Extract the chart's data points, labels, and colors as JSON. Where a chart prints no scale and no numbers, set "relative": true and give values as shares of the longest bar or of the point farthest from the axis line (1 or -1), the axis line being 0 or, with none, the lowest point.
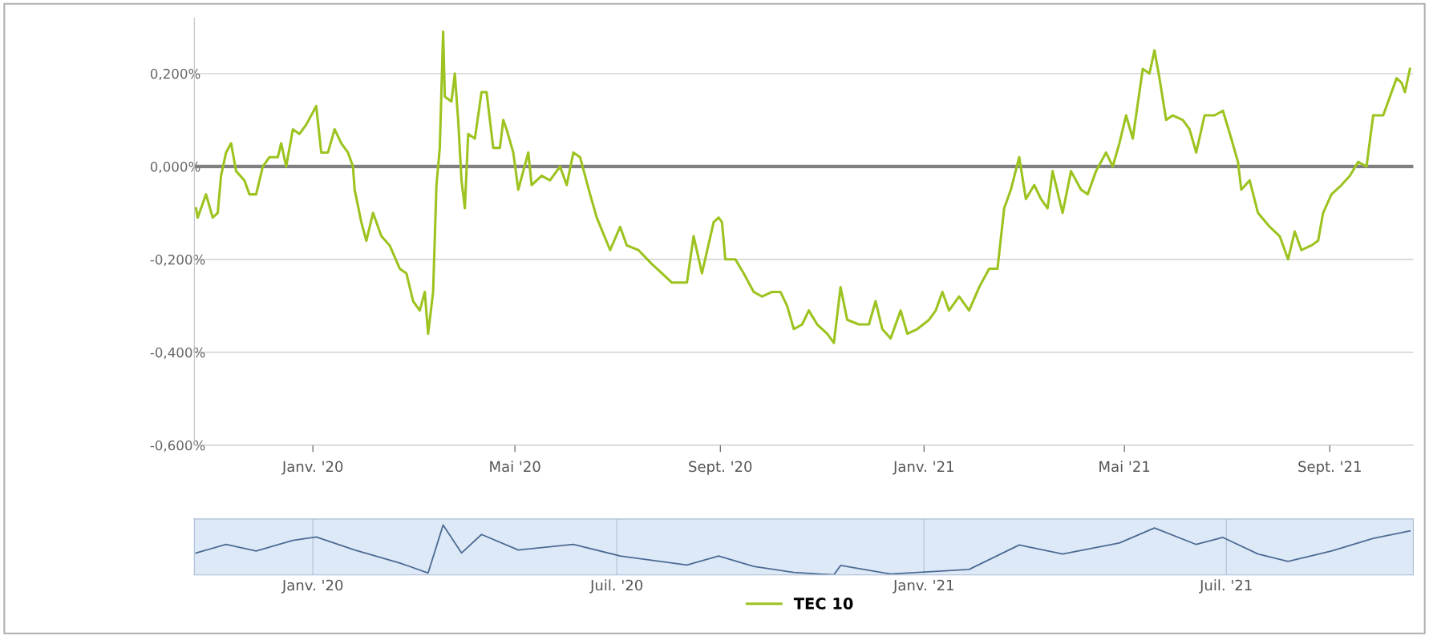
{
  "chart_data": [
    {
      "type": "line",
      "x": [
        "2019-10-23",
        "2019-10-24",
        "2019-10-29",
        "2019-11-02",
        "2019-11-05",
        "2019-11-07",
        "2019-11-10",
        "2019-11-13",
        "2019-11-16",
        "2019-11-21",
        "2019-11-24",
        "2019-11-28",
        "2019-12-02",
        "2019-12-06",
        "2019-12-11",
        "2019-12-13",
        "2019-12-16",
        "2019-12-20",
        "2019-12-24",
        "2019-12-28",
        "2020-01-03",
        "2020-01-06",
        "2020-01-10",
        "2020-01-14",
        "2020-01-18",
        "2020-01-22",
        "2020-01-25",
        "2020-01-26",
        "2020-01-30",
        "2020-02-02",
        "2020-02-06",
        "2020-02-11",
        "2020-02-16",
        "2020-02-22",
        "2020-02-26",
        "2020-03-01",
        "2020-03-05",
        "2020-03-08",
        "2020-03-10",
        "2020-03-13",
        "2020-03-15",
        "2020-03-17",
        "2020-03-19",
        "2020-03-20",
        "2020-03-24",
        "2020-03-26",
        "2020-03-28",
        "2020-03-30",
        "2020-04-01",
        "2020-04-03",
        "2020-04-07",
        "2020-04-11",
        "2020-04-14",
        "2020-04-18",
        "2020-04-22",
        "2020-04-24",
        "2020-04-26",
        "2020-04-30",
        "2020-05-03",
        "2020-05-09",
        "2020-05-11",
        "2020-05-17",
        "2020-05-22",
        "2020-05-28",
        "2020-06-01",
        "2020-06-05",
        "2020-06-09",
        "2020-06-15",
        "2020-06-19",
        "2020-06-27",
        "2020-07-03",
        "2020-07-07",
        "2020-07-14",
        "2020-07-22",
        "2020-07-28",
        "2020-08-03",
        "2020-08-12",
        "2020-08-16",
        "2020-08-21",
        "2020-08-28",
        "2020-08-31",
        "2020-09-02",
        "2020-09-04",
        "2020-09-10",
        "2020-09-15",
        "2020-09-21",
        "2020-09-26",
        "2020-10-02",
        "2020-10-07",
        "2020-10-11",
        "2020-10-15",
        "2020-10-20",
        "2020-10-24",
        "2020-10-29",
        "2020-11-04",
        "2020-11-08",
        "2020-11-12",
        "2020-11-16",
        "2020-11-23",
        "2020-11-29",
        "2020-12-03",
        "2020-12-07",
        "2020-12-12",
        "2020-12-18",
        "2020-12-22",
        "2020-12-28",
        "2021-01-04",
        "2021-01-08",
        "2021-01-12",
        "2021-01-16",
        "2021-01-22",
        "2021-01-28",
        "2021-02-03",
        "2021-02-09",
        "2021-02-14",
        "2021-02-18",
        "2021-02-22",
        "2021-02-27",
        "2021-03-03",
        "2021-03-08",
        "2021-03-12",
        "2021-03-16",
        "2021-03-19",
        "2021-03-25",
        "2021-03-30",
        "2021-04-05",
        "2021-04-09",
        "2021-04-14",
        "2021-04-20",
        "2021-04-24",
        "2021-04-28",
        "2021-05-02",
        "2021-05-06",
        "2021-05-12",
        "2021-05-16",
        "2021-05-19",
        "2021-05-22",
        "2021-05-26",
        "2021-05-30",
        "2021-06-05",
        "2021-06-09",
        "2021-06-13",
        "2021-06-18",
        "2021-06-24",
        "2021-06-29",
        "2021-07-04",
        "2021-07-08",
        "2021-07-10",
        "2021-07-15",
        "2021-07-20",
        "2021-07-27",
        "2021-08-02",
        "2021-08-07",
        "2021-08-11",
        "2021-08-15",
        "2021-08-21",
        "2021-08-25",
        "2021-08-28",
        "2021-09-02",
        "2021-09-08",
        "2021-09-13",
        "2021-09-18",
        "2021-09-23",
        "2021-09-27",
        "2021-10-03",
        "2021-10-07",
        "2021-10-11",
        "2021-10-14",
        "2021-10-16",
        "2021-10-19"
      ],
      "series": [
        {
          "name": "TEC 10",
          "color": "#9cc31f",
          "values": [
            -0.09,
            -0.11,
            -0.06,
            -0.11,
            -0.1,
            -0.02,
            0.03,
            0.05,
            -0.01,
            -0.03,
            -0.06,
            -0.06,
            0.0,
            0.02,
            0.02,
            0.05,
            0.0,
            0.08,
            0.07,
            0.09,
            0.13,
            0.03,
            0.03,
            0.08,
            0.05,
            0.03,
            0.0,
            -0.05,
            -0.12,
            -0.16,
            -0.1,
            -0.15,
            -0.17,
            -0.22,
            -0.23,
            -0.29,
            -0.31,
            -0.27,
            -0.36,
            -0.27,
            -0.04,
            0.04,
            0.29,
            0.15,
            0.14,
            0.2,
            0.1,
            -0.03,
            -0.09,
            0.07,
            0.06,
            0.16,
            0.16,
            0.04,
            0.04,
            0.1,
            0.08,
            0.03,
            -0.05,
            0.03,
            -0.04,
            -0.02,
            -0.03,
            0.0,
            -0.04,
            0.03,
            0.02,
            -0.06,
            -0.11,
            -0.18,
            -0.13,
            -0.17,
            -0.18,
            -0.21,
            -0.23,
            -0.25,
            -0.25,
            -0.15,
            -0.23,
            -0.12,
            -0.11,
            -0.12,
            -0.2,
            -0.2,
            -0.23,
            -0.27,
            -0.28,
            -0.27,
            -0.27,
            -0.3,
            -0.35,
            -0.34,
            -0.31,
            -0.34,
            -0.36,
            -0.38,
            -0.26,
            -0.33,
            -0.34,
            -0.34,
            -0.29,
            -0.35,
            -0.37,
            -0.31,
            -0.36,
            -0.35,
            -0.33,
            -0.31,
            -0.27,
            -0.31,
            -0.28,
            -0.31,
            -0.26,
            -0.22,
            -0.22,
            -0.09,
            -0.05,
            0.02,
            -0.07,
            -0.04,
            -0.07,
            -0.09,
            -0.01,
            -0.1,
            -0.01,
            -0.05,
            -0.06,
            -0.01,
            0.03,
            0.0,
            0.05,
            0.11,
            0.06,
            0.21,
            0.2,
            0.25,
            0.19,
            0.1,
            0.11,
            0.1,
            0.08,
            0.03,
            0.11,
            0.11,
            0.12,
            0.06,
            0.01,
            -0.05,
            -0.03,
            -0.1,
            -0.13,
            -0.15,
            -0.2,
            -0.14,
            -0.18,
            -0.17,
            -0.16,
            -0.1,
            -0.06,
            -0.04,
            -0.02,
            0.01,
            0.0,
            0.11,
            0.11,
            0.15,
            0.19,
            0.18,
            0.16,
            0.21
          ]
        }
      ],
      "xlim": [
        "2019-10-22",
        "2021-10-21"
      ],
      "xticks": [
        {
          "value": "2020-01-01",
          "label": "Janv. '20"
        },
        {
          "value": "2020-05-01",
          "label": "Mai '20"
        },
        {
          "value": "2020-09-01",
          "label": "Sept. '20"
        },
        {
          "value": "2021-01-01",
          "label": "Janv. '21"
        },
        {
          "value": "2021-05-01",
          "label": "Mai '21"
        },
        {
          "value": "2021-09-01",
          "label": "Sept. '21"
        }
      ],
      "ylim": [
        -0.6,
        0.32
      ],
      "yticks": [
        {
          "value": 0.2,
          "label": "0,200%"
        },
        {
          "value": 0,
          "label": "0,000%"
        },
        {
          "value": -0.2,
          "label": "-0,200%"
        },
        {
          "value": -0.4,
          "label": "-0,400%"
        },
        {
          "value": -0.6,
          "label": "-0,600%"
        }
      ],
      "ref_lines": [
        {
          "axis": "y",
          "value": 0,
          "color": "#808080"
        }
      ],
      "grid": "y",
      "legend": "bottom",
      "marker": "none",
      "line_style": "solid"
    },
    {
      "type": "line",
      "relative": true,
      "tick_labels": "x",
      "x": [
        "2019-10-23",
        "2019-11-10",
        "2019-11-28",
        "2019-12-20",
        "2020-01-03",
        "2020-01-26",
        "2020-02-22",
        "2020-03-10",
        "2020-03-19",
        "2020-03-30",
        "2020-04-11",
        "2020-05-03",
        "2020-06-05",
        "2020-07-03",
        "2020-08-12",
        "2020-08-31",
        "2020-09-21",
        "2020-10-15",
        "2020-11-08",
        "2020-11-12",
        "2020-12-12",
        "2021-01-28",
        "2021-02-27",
        "2021-03-25",
        "2021-04-28",
        "2021-05-19",
        "2021-06-13",
        "2021-06-29",
        "2021-07-20",
        "2021-08-07",
        "2021-09-02",
        "2021-09-27",
        "2021-10-19"
      ],
      "series": [
        {
          "color": "#4d6b94",
          "values": [
            0.44,
            0.61,
            0.48,
            0.69,
            0.76,
            0.5,
            0.24,
            0.04,
            1.0,
            0.44,
            0.81,
            0.5,
            0.61,
            0.38,
            0.2,
            0.38,
            0.17,
            0.05,
            0.0,
            0.19,
            0.02,
            0.11,
            0.6,
            0.42,
            0.64,
            0.94,
            0.61,
            0.75,
            0.42,
            0.27,
            0.48,
            0.73,
            0.88
          ]
        }
      ],
      "xlim": [
        "2019-10-22",
        "2021-10-21"
      ],
      "xticks": [
        {
          "value": "2020-01-01",
          "label": "Janv. '20"
        },
        {
          "value": "2020-07-01",
          "label": "Juil. '20"
        },
        {
          "value": "2021-01-01",
          "label": "Janv. '21"
        },
        {
          "value": "2021-07-01",
          "label": "Juil. '21"
        }
      ],
      "grid": "x",
      "marker": "none",
      "line_style": "solid"
    }
  ]
}
